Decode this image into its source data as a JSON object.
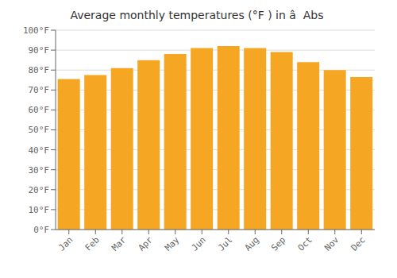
{
  "chart_data": {
    "type": "bar",
    "title": "Average monthly temperatures (°F ) in â  Abs",
    "categories": [
      "Jan",
      "Feb",
      "Mar",
      "Apr",
      "May",
      "Jun",
      "Jul",
      "Aug",
      "Sep",
      "Oct",
      "Nov",
      "Dec"
    ],
    "values": [
      75.5,
      77.5,
      81,
      85,
      88,
      91,
      92,
      91,
      89,
      84,
      80,
      76.5
    ],
    "color": "#F5A623",
    "ylim": [
      0,
      100
    ],
    "yticks": [
      {
        "value": 0,
        "label": "0°F"
      },
      {
        "value": 10,
        "label": "10°F"
      },
      {
        "value": 20,
        "label": "20°F"
      },
      {
        "value": 30,
        "label": "30°F"
      },
      {
        "value": 40,
        "label": "40°F"
      },
      {
        "value": 50,
        "label": "50°F"
      },
      {
        "value": 60,
        "label": "60°F"
      },
      {
        "value": 70,
        "label": "70°F"
      },
      {
        "value": 80,
        "label": "80°F"
      },
      {
        "value": 90,
        "label": "90°F"
      },
      {
        "value": 100,
        "label": "100°F"
      }
    ],
    "grid": true
  }
}
